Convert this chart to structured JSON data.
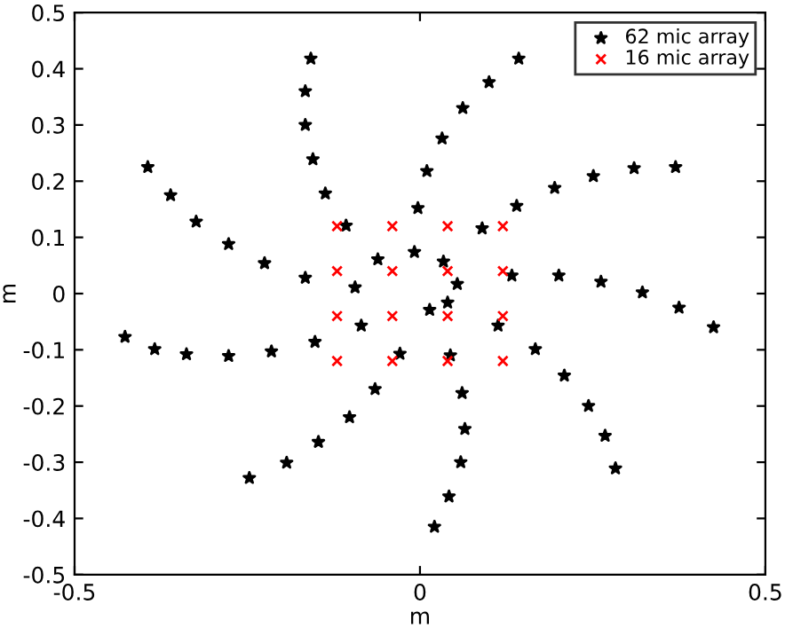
{
  "chart_data": {
    "type": "scatter",
    "xlabel": "m",
    "ylabel": "m",
    "xlim": [
      -0.5,
      0.5
    ],
    "ylim": [
      -0.5,
      0.5
    ],
    "xticks": [
      -0.5,
      0,
      0.5
    ],
    "yticks": [
      -0.5,
      -0.4,
      -0.3,
      -0.2,
      -0.1,
      0,
      0.1,
      0.2,
      0.3,
      0.4,
      0.5
    ],
    "grid": false,
    "legend": "top right",
    "series": [
      {
        "name": "62 mic array",
        "color": "#000000",
        "marker": "star",
        "x": [
          -0.394,
          -0.361,
          -0.324,
          -0.277,
          -0.225,
          -0.166,
          -0.094,
          -0.158,
          -0.166,
          -0.166,
          -0.155,
          -0.137,
          -0.107,
          -0.061,
          -0.008,
          -0.003,
          0.01,
          0.032,
          0.062,
          0.1,
          0.143,
          0.09,
          0.14,
          0.195,
          0.251,
          0.31,
          0.37,
          0.034,
          0.054,
          0.133,
          0.201,
          0.262,
          0.322,
          0.375,
          0.425,
          0.014,
          0.04,
          0.113,
          0.167,
          0.209,
          0.244,
          0.268,
          0.283,
          0.044,
          0.061,
          0.065,
          0.059,
          0.042,
          0.021,
          -0.427,
          -0.384,
          -0.338,
          -0.277,
          -0.215,
          -0.152,
          -0.085,
          -0.029,
          -0.065,
          -0.102,
          -0.147,
          -0.193,
          -0.247
        ],
        "values": [
          0.225,
          0.175,
          0.128,
          0.088,
          0.054,
          0.028,
          0.011,
          0.418,
          0.36,
          0.3,
          0.239,
          0.178,
          0.121,
          0.061,
          0.074,
          0.152,
          0.218,
          0.276,
          0.33,
          0.376,
          0.418,
          0.116,
          0.156,
          0.188,
          0.209,
          0.223,
          0.225,
          0.057,
          0.017,
          0.032,
          0.032,
          0.021,
          0.002,
          -0.025,
          -0.06,
          -0.029,
          -0.016,
          -0.057,
          -0.099,
          -0.146,
          -0.2,
          -0.253,
          -0.311,
          -0.11,
          -0.177,
          -0.241,
          -0.3,
          -0.361,
          -0.415,
          -0.077,
          -0.099,
          -0.108,
          -0.111,
          -0.103,
          -0.086,
          -0.057,
          -0.107,
          -0.17,
          -0.22,
          -0.264,
          -0.301,
          -0.328
        ]
      },
      {
        "name": "16 mic array",
        "color": "#ff0000",
        "marker": "cross",
        "x": [
          -0.12,
          -0.04,
          0.04,
          0.12,
          -0.12,
          -0.04,
          0.04,
          0.12,
          -0.12,
          -0.04,
          0.04,
          0.12,
          -0.12,
          -0.04,
          0.04,
          0.12
        ],
        "values": [
          0.12,
          0.12,
          0.12,
          0.12,
          0.04,
          0.04,
          0.04,
          0.04,
          -0.04,
          -0.04,
          -0.04,
          -0.04,
          -0.12,
          -0.12,
          -0.12,
          -0.12
        ]
      }
    ]
  }
}
